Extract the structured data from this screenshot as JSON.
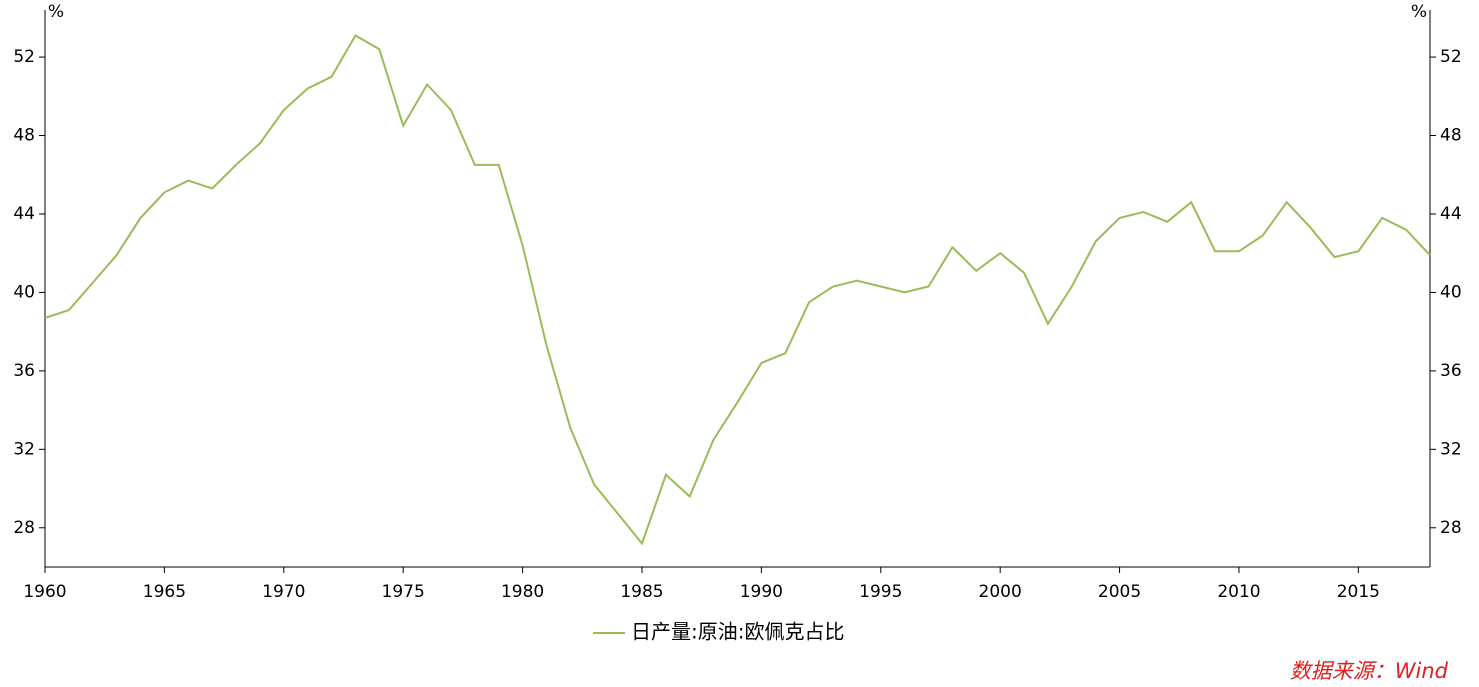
{
  "chart_data": {
    "type": "line",
    "y_unit": "%",
    "y2_unit": "%",
    "x": [
      1960,
      1961,
      1962,
      1963,
      1964,
      1965,
      1966,
      1967,
      1968,
      1969,
      1970,
      1971,
      1972,
      1973,
      1974,
      1975,
      1976,
      1977,
      1978,
      1979,
      1980,
      1981,
      1982,
      1983,
      1984,
      1985,
      1986,
      1987,
      1988,
      1989,
      1990,
      1991,
      1992,
      1993,
      1994,
      1995,
      1996,
      1997,
      1998,
      1999,
      2000,
      2001,
      2002,
      2003,
      2004,
      2005,
      2006,
      2007,
      2008,
      2009,
      2010,
      2011,
      2012,
      2013,
      2014,
      2015,
      2016,
      2017,
      2018
    ],
    "series": [
      {
        "name": "日产量:原油:欧佩克占比",
        "color": "#9bbb59",
        "values": [
          38.7,
          39.1,
          40.5,
          41.9,
          43.8,
          45.1,
          45.7,
          45.3,
          46.5,
          47.6,
          49.3,
          50.4,
          51.0,
          53.1,
          52.4,
          48.5,
          50.6,
          49.3,
          46.5,
          46.5,
          42.4,
          37.3,
          33.1,
          30.2,
          28.7,
          27.2,
          30.7,
          29.6,
          32.5,
          34.4,
          36.4,
          36.9,
          39.5,
          40.3,
          40.6,
          40.3,
          40.0,
          40.3,
          42.3,
          41.1,
          42.0,
          41.0,
          38.4,
          40.3,
          42.6,
          43.8,
          44.1,
          43.6,
          44.6,
          42.1,
          42.1,
          42.9,
          44.6,
          43.3,
          41.8,
          42.1,
          43.8,
          43.2,
          41.9
        ]
      }
    ],
    "xlim": [
      1960,
      2018
    ],
    "xticks": [
      1960,
      1965,
      1970,
      1975,
      1980,
      1985,
      1990,
      1995,
      2000,
      2005,
      2010,
      2015
    ],
    "ylim": [
      26,
      54.4
    ],
    "yticks": [
      28,
      32,
      36,
      40,
      44,
      48,
      52
    ],
    "y2lim": [
      26,
      54.4
    ],
    "y2ticks": [
      28,
      32,
      36,
      40,
      44,
      48,
      52
    ],
    "legend": "bottom",
    "source": "数据来源：Wind"
  }
}
